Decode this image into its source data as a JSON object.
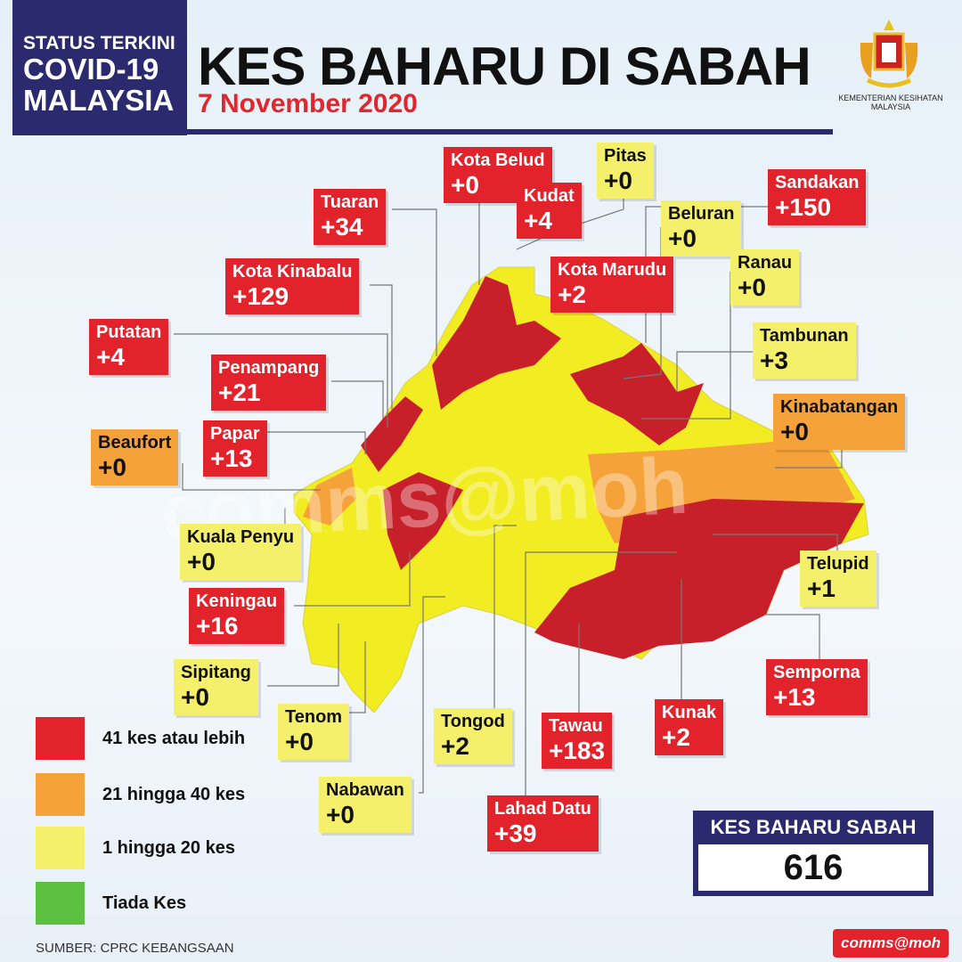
{
  "header": {
    "status_l1": "STATUS TERKINI",
    "status_l2": "COVID-19",
    "status_l3": "MALAYSIA",
    "title": "KES BAHARU DI SABAH",
    "date": "7 November 2020",
    "ministry": "KEMENTERIAN KESIHATAN MALAYSIA"
  },
  "colors": {
    "red": "#e3232b",
    "orange": "#f6a23a",
    "yellow": "#f5f06b",
    "green": "#5cbf3f",
    "navy": "#2c2a6e"
  },
  "districts": [
    {
      "name": "Kota Belud",
      "value": "+0",
      "level": "red"
    },
    {
      "name": "Pitas",
      "value": "+0",
      "level": "yellow"
    },
    {
      "name": "Tuaran",
      "value": "+34",
      "level": "red"
    },
    {
      "name": "Kudat",
      "value": "+4",
      "level": "red"
    },
    {
      "name": "Sandakan",
      "value": "+150",
      "level": "red"
    },
    {
      "name": "Beluran",
      "value": "+0",
      "level": "yellow"
    },
    {
      "name": "Kota Kinabalu",
      "value": "+129",
      "level": "red"
    },
    {
      "name": "Kota Marudu",
      "value": "+2",
      "level": "red"
    },
    {
      "name": "Ranau",
      "value": "+0",
      "level": "yellow"
    },
    {
      "name": "Putatan",
      "value": "+4",
      "level": "red"
    },
    {
      "name": "Tambunan",
      "value": "+3",
      "level": "yellow"
    },
    {
      "name": "Penampang",
      "value": "+21",
      "level": "red"
    },
    {
      "name": "Kinabatangan",
      "value": "+0",
      "level": "orange"
    },
    {
      "name": "Beaufort",
      "value": "+0",
      "level": "orange"
    },
    {
      "name": "Papar",
      "value": "+13",
      "level": "red"
    },
    {
      "name": "Kuala Penyu",
      "value": "+0",
      "level": "yellow"
    },
    {
      "name": "Telupid",
      "value": "+1",
      "level": "yellow"
    },
    {
      "name": "Keningau",
      "value": "+16",
      "level": "red"
    },
    {
      "name": "Sipitang",
      "value": "+0",
      "level": "yellow"
    },
    {
      "name": "Semporna",
      "value": "+13",
      "level": "red"
    },
    {
      "name": "Tenom",
      "value": "+0",
      "level": "yellow"
    },
    {
      "name": "Tongod",
      "value": "+2",
      "level": "yellow"
    },
    {
      "name": "Tawau",
      "value": "+183",
      "level": "red"
    },
    {
      "name": "Kunak",
      "value": "+2",
      "level": "red"
    },
    {
      "name": "Nabawan",
      "value": "+0",
      "level": "yellow"
    },
    {
      "name": "Lahad Datu",
      "value": "+39",
      "level": "red"
    }
  ],
  "legend": [
    {
      "label": "41 kes atau lebih",
      "color": "#e3232b"
    },
    {
      "label": "21 hingga 40 kes",
      "color": "#f6a23a"
    },
    {
      "label": "1 hingga 20 kes",
      "color": "#f5f06b"
    },
    {
      "label": "Tiada Kes",
      "color": "#5cbf3f"
    }
  ],
  "total": {
    "label": "KES BAHARU SABAH",
    "value": "616"
  },
  "source": "SUMBER: CPRC KEBANGSAAN",
  "watermark": "comms@moh",
  "badge": "comms@moh"
}
